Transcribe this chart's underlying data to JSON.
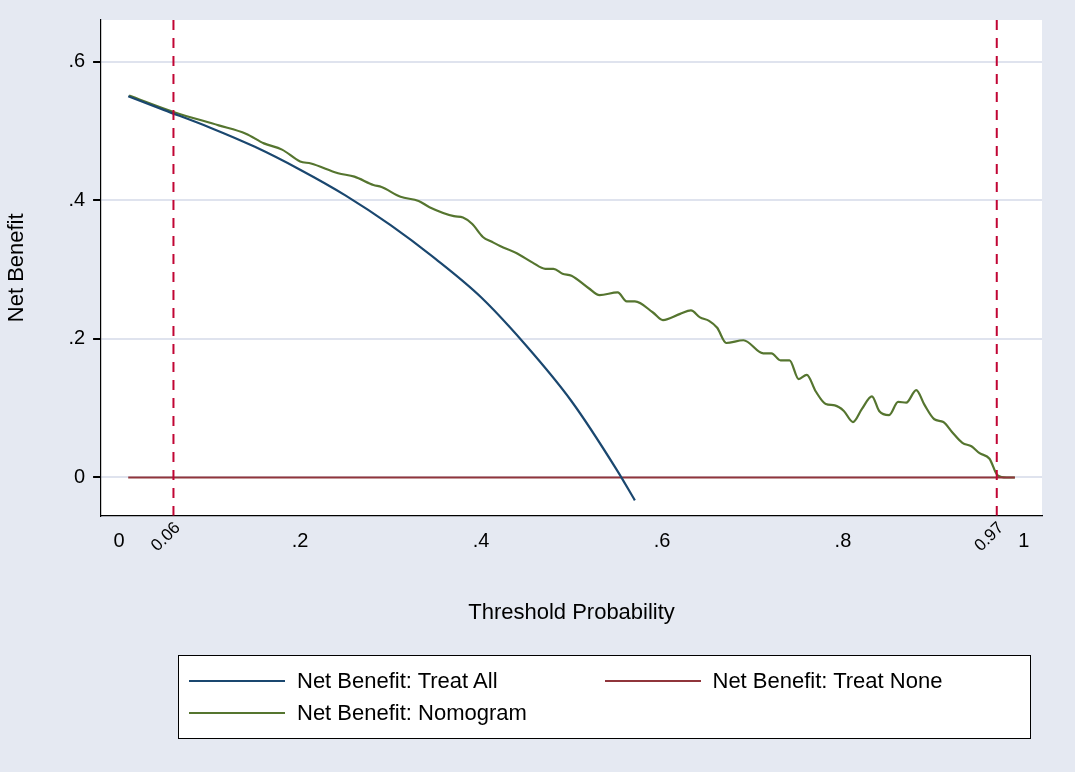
{
  "chart_data": {
    "type": "line",
    "xlabel": "Threshold Probability",
    "ylabel": "Net Benefit",
    "xlim": [
      -0.02,
      1.02
    ],
    "ylim": [
      -0.055,
      0.66
    ],
    "xticks": [
      0,
      {
        "value": 0.2,
        "label": ".2"
      },
      {
        "value": 0.4,
        "label": ".4"
      },
      {
        "value": 0.6,
        "label": ".6"
      },
      {
        "value": 0.8,
        "label": ".8"
      },
      1
    ],
    "yticks": [
      0,
      {
        "value": 0.2,
        "label": ".2"
      },
      {
        "value": 0.4,
        "label": ".4"
      },
      {
        "value": 0.6,
        "label": ".6"
      }
    ],
    "grid": "y",
    "legend": "bottom",
    "line_style": "solid",
    "marker": "none",
    "ref_lines": [
      {
        "axis": "x",
        "value": 0.06,
        "label": "0.06",
        "color": "#c10534",
        "line_style": "dashed"
      },
      {
        "axis": "x",
        "value": 0.97,
        "label": "0.97",
        "color": "#c10534",
        "line_style": "dashed"
      }
    ],
    "series": [
      {
        "name": "Net Benefit: Treat All",
        "color": "#1a476f",
        "x": [
          0.01,
          0.05,
          0.1,
          0.15,
          0.2,
          0.25,
          0.3,
          0.35,
          0.4,
          0.45,
          0.5,
          0.55,
          0.57
        ],
        "values": [
          0.55,
          0.53,
          0.505,
          0.477,
          0.444,
          0.407,
          0.364,
          0.315,
          0.26,
          0.19,
          0.11,
          0.011,
          -0.033
        ]
      },
      {
        "name": "Net Benefit: Treat None",
        "color": "#90353b",
        "x": [
          0.01,
          0.99
        ],
        "values": [
          0,
          0
        ]
      },
      {
        "name": "Net Benefit: Nomogram",
        "color": "#55752f",
        "x": [
          0.011,
          0.061,
          0.11,
          0.14,
          0.16,
          0.18,
          0.2,
          0.212,
          0.242,
          0.26,
          0.281,
          0.29,
          0.311,
          0.331,
          0.343,
          0.37,
          0.38,
          0.39,
          0.402,
          0.412,
          0.421,
          0.44,
          0.457,
          0.471,
          0.48,
          0.49,
          0.5,
          0.519,
          0.531,
          0.551,
          0.561,
          0.57,
          0.59,
          0.601,
          0.62,
          0.632,
          0.642,
          0.652,
          0.661,
          0.671,
          0.69,
          0.712,
          0.721,
          0.731,
          0.741,
          0.751,
          0.76,
          0.77,
          0.781,
          0.791,
          0.801,
          0.811,
          0.821,
          0.832,
          0.84,
          0.851,
          0.861,
          0.87,
          0.881,
          0.89,
          0.901,
          0.911,
          0.921,
          0.932,
          0.942,
          0.951,
          0.962,
          0.971,
          0.981,
          0.99
        ],
        "values": [
          0.551,
          0.527,
          0.508,
          0.496,
          0.482,
          0.473,
          0.456,
          0.453,
          0.439,
          0.434,
          0.422,
          0.419,
          0.405,
          0.399,
          0.39,
          0.377,
          0.375,
          0.366,
          0.347,
          0.34,
          0.334,
          0.323,
          0.31,
          0.301,
          0.301,
          0.294,
          0.291,
          0.273,
          0.263,
          0.267,
          0.254,
          0.254,
          0.238,
          0.227,
          0.236,
          0.241,
          0.231,
          0.226,
          0.216,
          0.194,
          0.198,
          0.179,
          0.179,
          0.169,
          0.169,
          0.142,
          0.148,
          0.124,
          0.106,
          0.104,
          0.096,
          0.08,
          0.099,
          0.117,
          0.096,
          0.09,
          0.109,
          0.108,
          0.126,
          0.105,
          0.084,
          0.08,
          0.065,
          0.05,
          0.045,
          0.035,
          0.027,
          0.003,
          0,
          0
        ]
      }
    ]
  }
}
